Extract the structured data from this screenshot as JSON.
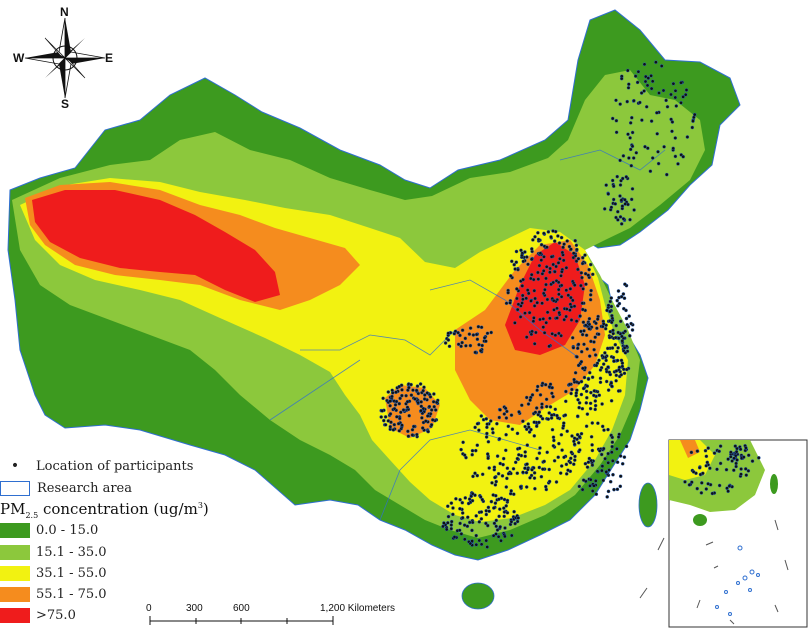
{
  "compass": {
    "n": "N",
    "s": "S",
    "e": "E",
    "w": "W"
  },
  "legend": {
    "participants_label": "Location of participants",
    "research_area_label": "Research area",
    "title_main": "PM",
    "title_sub": "2.5",
    "title_rest": " concentration (ug/m",
    "title_sup": "3",
    "title_close": ")",
    "classes": [
      {
        "label": "0.0 - 15.0",
        "color": "#3d9a1f"
      },
      {
        "label": "15.1 - 35.0",
        "color": "#8cc83c"
      },
      {
        "label": "35.1 - 55.0",
        "color": "#f2f211"
      },
      {
        "label": "55.1 - 75.0",
        "color": "#f58c1e"
      },
      {
        "label": ">75.0",
        "color": "#ef1c1c"
      }
    ]
  },
  "scale_bar": {
    "ticks": [
      "0",
      "300",
      "600",
      "1,200 Kilometers"
    ],
    "distances_km": [
      0,
      300,
      600,
      1200
    ]
  },
  "colors": {
    "low": "#3d9a1f",
    "mid_low": "#8cc83c",
    "mid": "#f2f211",
    "high": "#f58c1e",
    "very_high": "#ef1c1c",
    "boundary": "#2f6fd0",
    "participant": "#111111",
    "sea": "#ffffff"
  }
}
